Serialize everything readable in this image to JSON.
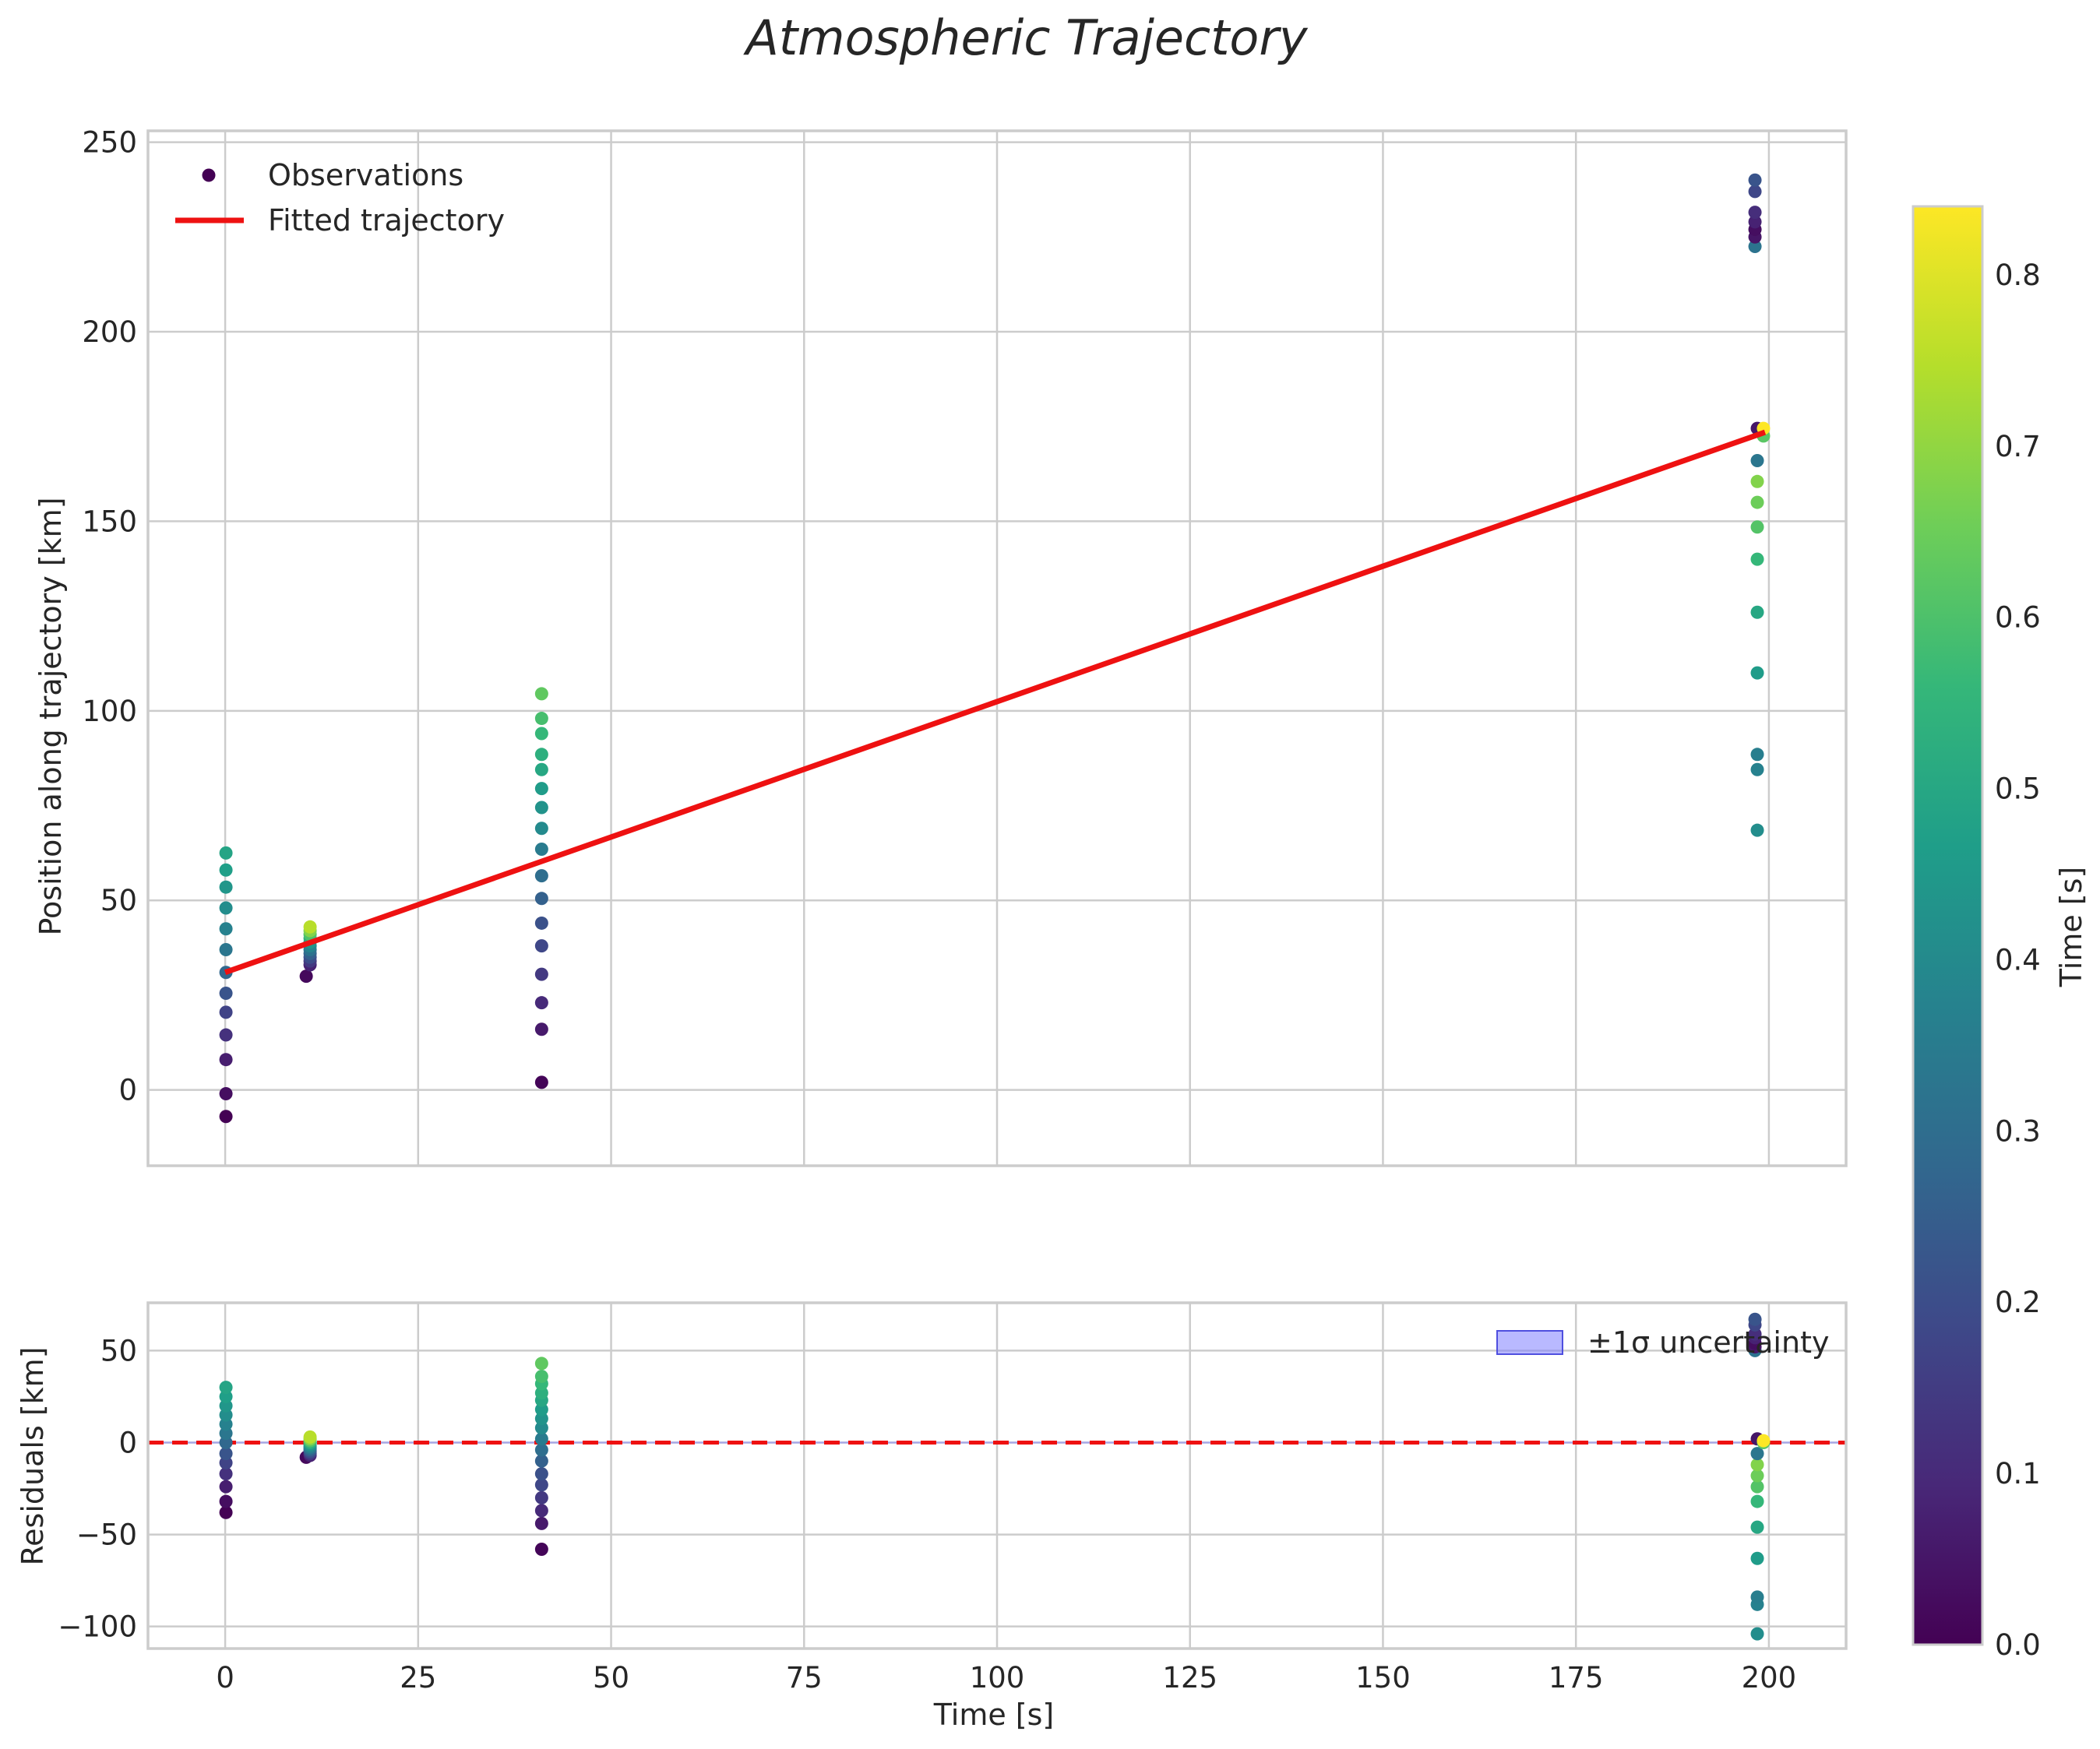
{
  "chart_data": [
    {
      "type": "scatter",
      "title": "Atmospheric Trajectory",
      "xlabel": "",
      "ylabel": "Position along trajectory [km]",
      "xlim": [
        -10,
        210
      ],
      "ylim": [
        -20,
        253
      ],
      "x_ticks": [
        0,
        25,
        50,
        75,
        100,
        125,
        150,
        175,
        200
      ],
      "y_ticks": [
        0,
        50,
        100,
        150,
        200,
        250
      ],
      "grid": true,
      "legend": {
        "location": "top-left",
        "entries": [
          "Observations",
          "Fitted trajectory"
        ]
      },
      "fit_line": {
        "name": "Fitted trajectory",
        "color": "#ee1111",
        "x": [
          0,
          199.5
        ],
        "y": [
          31,
          173.5
        ]
      },
      "series": [
        {
          "name": "Observations",
          "x": 0.1,
          "groups": [
            {
              "y": [
                -7,
                -1,
                8,
                14.5,
                20.5,
                25.5,
                31,
                37,
                42.5,
                48,
                53.5,
                58,
                62.5
              ],
              "t": [
                0.0,
                0.03,
                0.07,
                0.12,
                0.17,
                0.22,
                0.28,
                0.33,
                0.37,
                0.41,
                0.44,
                0.47,
                0.49
              ]
            },
            {
              "x": 10.5,
              "y": [
                30
              ],
              "t": [
                0.02
              ]
            },
            {
              "x": 11.0,
              "y": [
                33,
                34,
                35,
                36,
                37,
                38,
                39,
                40,
                41,
                42,
                43
              ],
              "t": [
                0.08,
                0.14,
                0.2,
                0.26,
                0.32,
                0.38,
                0.44,
                0.52,
                0.6,
                0.68,
                0.75
              ]
            },
            {
              "x": 41.0,
              "y": [
                2,
                16,
                23,
                30.5,
                38,
                44,
                50.5,
                56.5,
                63.5,
                69,
                74.5,
                79.5,
                84.5,
                88.5,
                94,
                98,
                104.5
              ],
              "t": [
                0.01,
                0.06,
                0.1,
                0.14,
                0.18,
                0.21,
                0.26,
                0.3,
                0.35,
                0.4,
                0.43,
                0.46,
                0.5,
                0.53,
                0.56,
                0.59,
                0.63
              ]
            },
            {
              "x": 198.2,
              "y": [
                222.5,
                225,
                227,
                229,
                231.5,
                237,
                240
              ],
              "t": [
                0.32,
                0.05,
                0.03,
                0.08,
                0.11,
                0.18,
                0.22
              ]
            },
            {
              "x": 198.5,
              "y": [
                68.5,
                84.5,
                88.5,
                110,
                126,
                140,
                148.5,
                155,
                160.5,
                166,
                174.5
              ],
              "t": [
                0.41,
                0.37,
                0.36,
                0.46,
                0.5,
                0.56,
                0.61,
                0.65,
                0.68,
                0.33,
                0.05
              ]
            },
            {
              "x": 199.3,
              "y": [
                172.5,
                174.5
              ],
              "t": [
                0.62,
                0.84
              ]
            }
          ]
        }
      ]
    },
    {
      "type": "scatter",
      "title": "",
      "xlabel": "Time [s]",
      "ylabel": "Residuals [km]",
      "xlim": [
        -10,
        210
      ],
      "ylim": [
        -112,
        76
      ],
      "x_ticks": [
        0,
        25,
        50,
        75,
        100,
        125,
        150,
        175,
        200
      ],
      "y_ticks": [
        -100,
        -50,
        0,
        50
      ],
      "grid": true,
      "legend": {
        "location": "top-right",
        "entries": [
          "±1σ uncertainty"
        ]
      },
      "zero_line": {
        "y": 0,
        "color": "#ee1111",
        "style": "dashed"
      },
      "uncertainty_band": {
        "color": "#7f7fff",
        "y_low": -0.5,
        "y_high": 0.5
      },
      "series": [
        {
          "name": "Residuals",
          "groups": [
            {
              "x": 0.1,
              "y": [
                -38,
                -32,
                -24,
                -17,
                -11,
                -6,
                0,
                5,
                10,
                15,
                20,
                25,
                30
              ],
              "t": [
                0.0,
                0.03,
                0.07,
                0.12,
                0.17,
                0.22,
                0.28,
                0.33,
                0.37,
                0.41,
                0.44,
                0.47,
                0.49
              ]
            },
            {
              "x": 10.5,
              "y": [
                -8
              ],
              "t": [
                0.02
              ]
            },
            {
              "x": 11.0,
              "y": [
                -7,
                -6,
                -5,
                -4,
                -3,
                -2,
                -1,
                0,
                1,
                2,
                3
              ],
              "t": [
                0.08,
                0.14,
                0.2,
                0.26,
                0.32,
                0.38,
                0.44,
                0.52,
                0.6,
                0.68,
                0.75
              ]
            },
            {
              "x": 41.0,
              "y": [
                -58,
                -44,
                -37,
                -30,
                -23,
                -17,
                -10,
                -4,
                2,
                8,
                13,
                18,
                23,
                27,
                32,
                36,
                43
              ],
              "t": [
                0.01,
                0.06,
                0.1,
                0.14,
                0.18,
                0.21,
                0.26,
                0.3,
                0.35,
                0.4,
                0.43,
                0.46,
                0.5,
                0.53,
                0.56,
                0.59,
                0.63
              ]
            },
            {
              "x": 198.2,
              "y": [
                50,
                52,
                54,
                57,
                59,
                64,
                67
              ],
              "t": [
                0.32,
                0.05,
                0.03,
                0.08,
                0.11,
                0.18,
                0.22
              ]
            },
            {
              "x": 198.5,
              "y": [
                -104,
                -88,
                -84,
                -63,
                -46,
                -32,
                -24,
                -18,
                -12,
                -6,
                2
              ],
              "t": [
                0.41,
                0.37,
                0.36,
                0.46,
                0.5,
                0.56,
                0.61,
                0.65,
                0.68,
                0.33,
                0.05
              ]
            },
            {
              "x": 199.3,
              "y": [
                0,
                1
              ],
              "t": [
                0.62,
                0.84
              ]
            }
          ]
        }
      ]
    },
    {
      "type": "colorbar",
      "label": "Time [s]",
      "colormap": "viridis",
      "range": [
        0.0,
        0.84
      ],
      "ticks": [
        "0.0",
        "0.1",
        "0.2",
        "0.3",
        "0.4",
        "0.5",
        "0.6",
        "0.7",
        "0.8"
      ]
    }
  ]
}
